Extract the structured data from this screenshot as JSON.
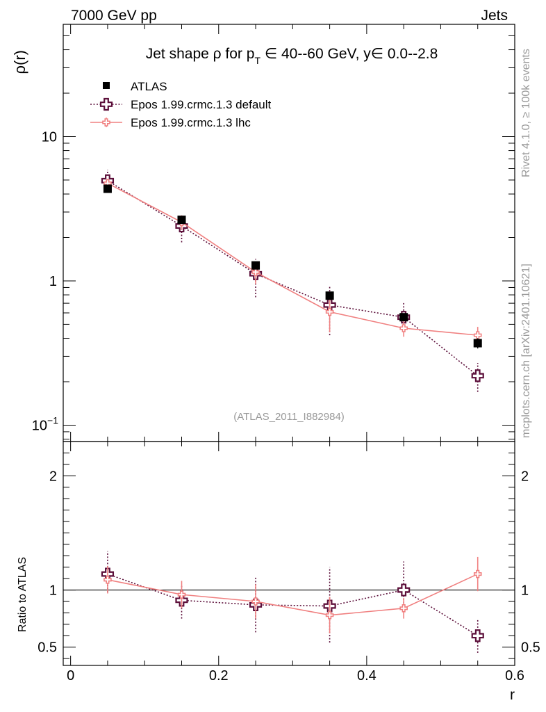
{
  "header": {
    "left": "7000 GeV pp",
    "right": "Jets"
  },
  "side_labels": {
    "rivet": "Rivet 4.1.0, ≥ 100k events",
    "mcplots": "mcplots.cern.ch [arXiv:2401.10621]"
  },
  "colors": {
    "data": "#000000",
    "default": "#5c0f3a",
    "lhc": "#f08080",
    "axis": "#000000",
    "watermark": "#999999"
  },
  "chart_data": [
    {
      "type": "scatter",
      "panel": "main",
      "title_parts": {
        "pre": "Jet shape ρ for p",
        "sub": "T",
        "post": " ∈ 40--60 GeV, y∈ 0.0--2.8"
      },
      "ylabel": "ρ(r)",
      "yscale": "log",
      "xlim": [
        -0.01,
        0.6
      ],
      "ylim": [
        0.077,
        60
      ],
      "x_ticks": [
        0,
        0.2,
        0.4,
        0.6
      ],
      "y_major_ticks": [
        {
          "value": 0.1,
          "base": "10",
          "exp": "−1"
        },
        {
          "value": 1,
          "label": "1"
        },
        {
          "value": 10,
          "label": "10"
        }
      ],
      "watermark": "(ATLAS_2011_I882984)",
      "legend": [
        "ATLAS",
        "Epos 1.99.crmc.1.3 default",
        "Epos 1.99.crmc.1.3 lhc"
      ],
      "series": [
        {
          "name": "ATLAS",
          "style": "data",
          "x": [
            0.05,
            0.15,
            0.25,
            0.35,
            0.45,
            0.55
          ],
          "y": [
            4.35,
            2.65,
            1.28,
            0.79,
            0.56,
            0.37
          ],
          "err": [
            0.25,
            0.12,
            0.07,
            0.04,
            0.03,
            0.03
          ]
        },
        {
          "name": "Epos 1.99.crmc.1.3 default",
          "style": "default",
          "x": [
            0.05,
            0.15,
            0.25,
            0.35,
            0.45,
            0.55
          ],
          "y": [
            4.95,
            2.4,
            1.12,
            0.68,
            0.56,
            0.22
          ],
          "err_lo": [
            0.6,
            0.55,
            0.35,
            0.26,
            0.1,
            0.05
          ],
          "err_hi": [
            0.95,
            0.4,
            0.3,
            0.25,
            0.15,
            0.05
          ]
        },
        {
          "name": "Epos 1.99.crmc.1.3 lhc",
          "style": "lhc",
          "x": [
            0.05,
            0.15,
            0.25,
            0.35,
            0.45,
            0.55
          ],
          "y": [
            4.75,
            2.55,
            1.15,
            0.61,
            0.47,
            0.42
          ],
          "err_lo": [
            0.35,
            0.3,
            0.2,
            0.17,
            0.06,
            0.05
          ],
          "err_hi": [
            0.35,
            0.3,
            0.2,
            0.17,
            0.06,
            0.06
          ]
        }
      ]
    },
    {
      "type": "line",
      "panel": "ratio",
      "ylabel": "Ratio to ATLAS",
      "xlabel": "r",
      "xlim": [
        -0.01,
        0.6
      ],
      "ylim": [
        0.34,
        2.3
      ],
      "x_ticks": [
        0,
        0.2,
        0.4,
        0.6
      ],
      "y_ticks": [
        0.5,
        1,
        2
      ],
      "reference_line": 1,
      "series": [
        {
          "name": "Epos 1.99.crmc.1.3 default",
          "style": "default",
          "x": [
            0.05,
            0.15,
            0.25,
            0.35,
            0.45,
            0.55
          ],
          "y": [
            1.14,
            0.91,
            0.87,
            0.86,
            1.0,
            0.6
          ],
          "err_lo": [
            0.16,
            0.16,
            0.24,
            0.32,
            0.17,
            0.15
          ],
          "err_hi": [
            0.2,
            0.14,
            0.25,
            0.34,
            0.25,
            0.14
          ]
        },
        {
          "name": "Epos 1.99.crmc.1.3 lhc",
          "style": "lhc",
          "x": [
            0.05,
            0.15,
            0.25,
            0.35,
            0.45,
            0.55
          ],
          "y": [
            1.09,
            0.96,
            0.9,
            0.78,
            0.84,
            1.14
          ],
          "err_lo": [
            0.12,
            0.12,
            0.15,
            0.16,
            0.09,
            0.15
          ],
          "err_hi": [
            0.12,
            0.12,
            0.15,
            0.16,
            0.09,
            0.15
          ]
        }
      ]
    }
  ]
}
